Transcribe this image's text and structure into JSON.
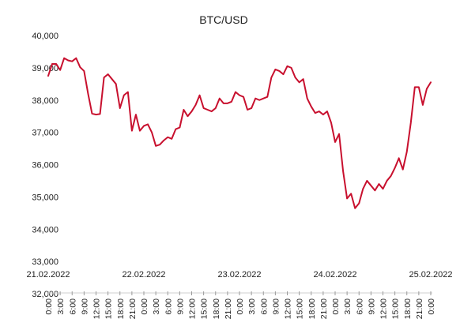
{
  "chart_data": {
    "type": "line",
    "title": "BTC/USD",
    "xlabel": "",
    "ylabel": "",
    "ylim": [
      32000,
      40000
    ],
    "yticks": [
      32000,
      33000,
      34000,
      35000,
      36000,
      37000,
      38000,
      39000,
      40000
    ],
    "ytick_labels": [
      "32,000",
      "33,000",
      "34,000",
      "35,000",
      "36,000",
      "37,000",
      "38,000",
      "39,000",
      "40,000"
    ],
    "grid": false,
    "legend": "none",
    "line_color": "#c8102e",
    "date_labels": [
      "21.02.2022",
      "22.02.2022",
      "23.02.2022",
      "24.02.2022",
      "25.02.2022"
    ],
    "x_tick_labels": [
      "0:00",
      "3:00",
      "6:00",
      "9:00",
      "12:00",
      "15:00",
      "18:00",
      "21:00",
      "0:00",
      "3:00",
      "6:00",
      "9:00",
      "12:00",
      "15:00",
      "18:00",
      "21:00",
      "0:00",
      "3:00",
      "6:00",
      "9:00",
      "12:00",
      "15:00",
      "18:00",
      "21:00",
      "0:00",
      "3:00",
      "6:00",
      "9:00",
      "12:00",
      "15:00",
      "18:00",
      "21:00",
      "0:00"
    ],
    "x_hours": [
      0,
      1,
      2,
      3,
      4,
      5,
      6,
      7,
      8,
      9,
      10,
      11,
      12,
      13,
      14,
      15,
      16,
      17,
      18,
      19,
      20,
      21,
      22,
      23,
      24,
      25,
      26,
      27,
      28,
      29,
      30,
      31,
      32,
      33,
      34,
      35,
      36,
      37,
      38,
      39,
      40,
      41,
      42,
      43,
      44,
      45,
      46,
      47,
      48,
      49,
      50,
      51,
      52,
      53,
      54,
      55,
      56,
      57,
      58,
      59,
      60,
      61,
      62,
      63,
      64,
      65,
      66,
      67,
      68,
      69,
      70,
      71,
      72,
      73,
      74,
      75,
      76,
      77,
      78,
      79,
      80,
      81,
      82,
      83,
      84,
      85,
      86,
      87,
      88,
      89,
      90,
      91,
      92,
      93,
      94,
      95,
      96
    ],
    "series": [
      {
        "values": [
          38750,
          39120,
          39120,
          38930,
          39300,
          39230,
          39200,
          39300,
          39020,
          38900,
          38200,
          37580,
          37550,
          37570,
          38700,
          38800,
          38650,
          38500,
          37750,
          38150,
          38250,
          37050,
          37550,
          37050,
          37200,
          37250,
          37000,
          36580,
          36620,
          36750,
          36850,
          36800,
          37100,
          37150,
          37700,
          37500,
          37650,
          37850,
          38150,
          37750,
          37700,
          37650,
          37750,
          38050,
          37900,
          37900,
          37950,
          38250,
          38150,
          38100,
          37700,
          37750,
          38050,
          38000,
          38050,
          38100,
          38700,
          38950,
          38900,
          38800,
          39050,
          39000,
          38700,
          38550,
          38650,
          38050,
          37800,
          37600,
          37650,
          37550,
          37650,
          37300,
          36700,
          36950,
          35800,
          34950,
          35100,
          34650,
          34800,
          35250,
          35500,
          35350,
          35200,
          35400,
          35250,
          35500,
          35650,
          35900,
          36200,
          35850,
          36400,
          37300,
          38400,
          38400,
          37850,
          38350,
          38550
        ]
      }
    ]
  }
}
